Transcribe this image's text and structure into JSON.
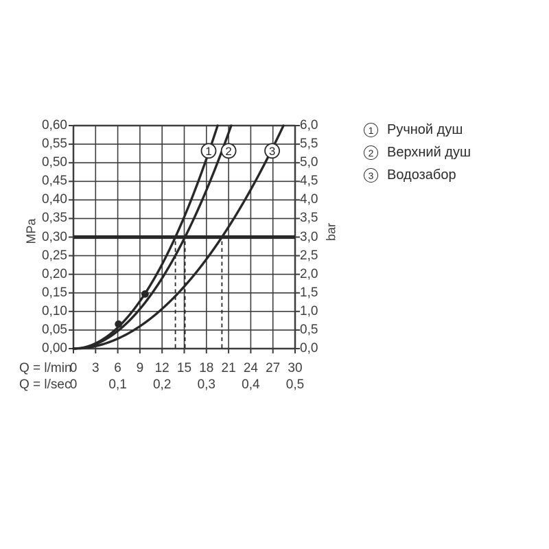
{
  "colors": {
    "background": "#ffffff",
    "ink": "#282828",
    "grid": "#3d3d3d",
    "text": "#3f3f3f"
  },
  "chart_data": {
    "type": "line",
    "title": "",
    "y_axis_left": {
      "label": "MPa",
      "min": 0,
      "max": 0.6,
      "step": 0.05,
      "tick_labels": [
        "0,60",
        "0,55",
        "0,50",
        "0,45",
        "0,40",
        "0,35",
        "0,30",
        "0,25",
        "0,20",
        "0,15",
        "0,10",
        "0,05",
        "0,00"
      ]
    },
    "y_axis_right": {
      "label": "bar",
      "min": 0,
      "max": 6.0,
      "step": 0.5,
      "tick_labels": [
        "6,0",
        "5,5",
        "5,0",
        "4,5",
        "4,0",
        "3,5",
        "3,0",
        "2,5",
        "2,0",
        "1,5",
        "1,0",
        "0,5",
        "0,0"
      ]
    },
    "x_axis": {
      "row1_label": "Q = l/min",
      "row1_ticks": [
        "0",
        "3",
        "6",
        "9",
        "12",
        "15",
        "18",
        "21",
        "24",
        "27",
        "30"
      ],
      "row2_label": "Q = l/sec",
      "row2_ticks": [
        "0",
        "0,1",
        "0,2",
        "0,3",
        "0,4",
        "0,5"
      ],
      "min": 0,
      "max": 30,
      "grid_step": 3
    },
    "grid": "on",
    "pressure_reference_line_mpa": 0.3,
    "dashed_flow_lines_lmin": [
      13.8,
      15.1,
      20.1
    ],
    "curves": [
      {
        "id": "1",
        "name": "Ручной душ",
        "flow_at_3bar_lmin": 13.8,
        "flow_at_top_lmin": 19.5
      },
      {
        "id": "2",
        "name": "Верхний душ",
        "flow_at_3bar_lmin": 15.1,
        "flow_at_top_lmin": 21.4
      },
      {
        "id": "3",
        "name": "Водозабор",
        "flow_at_3bar_lmin": 20.1,
        "flow_at_top_lmin": 28.4
      }
    ],
    "marker_dots": [
      {
        "q_lmin": 6.1,
        "p_mpa": 0.066
      },
      {
        "q_lmin": 9.7,
        "p_mpa": 0.147
      }
    ],
    "curve_label_circles": [
      {
        "label": "1",
        "q_lmin": 18.3,
        "p_mpa": 0.532
      },
      {
        "label": "2",
        "q_lmin": 21.0,
        "p_mpa": 0.532
      },
      {
        "label": "3",
        "q_lmin": 26.9,
        "p_mpa": 0.532
      }
    ],
    "legend_position": "right"
  },
  "legend": {
    "items": [
      {
        "num": "1",
        "label": "Ручной душ"
      },
      {
        "num": "2",
        "label": "Верхний душ"
      },
      {
        "num": "3",
        "label": "Водозабор"
      }
    ]
  }
}
